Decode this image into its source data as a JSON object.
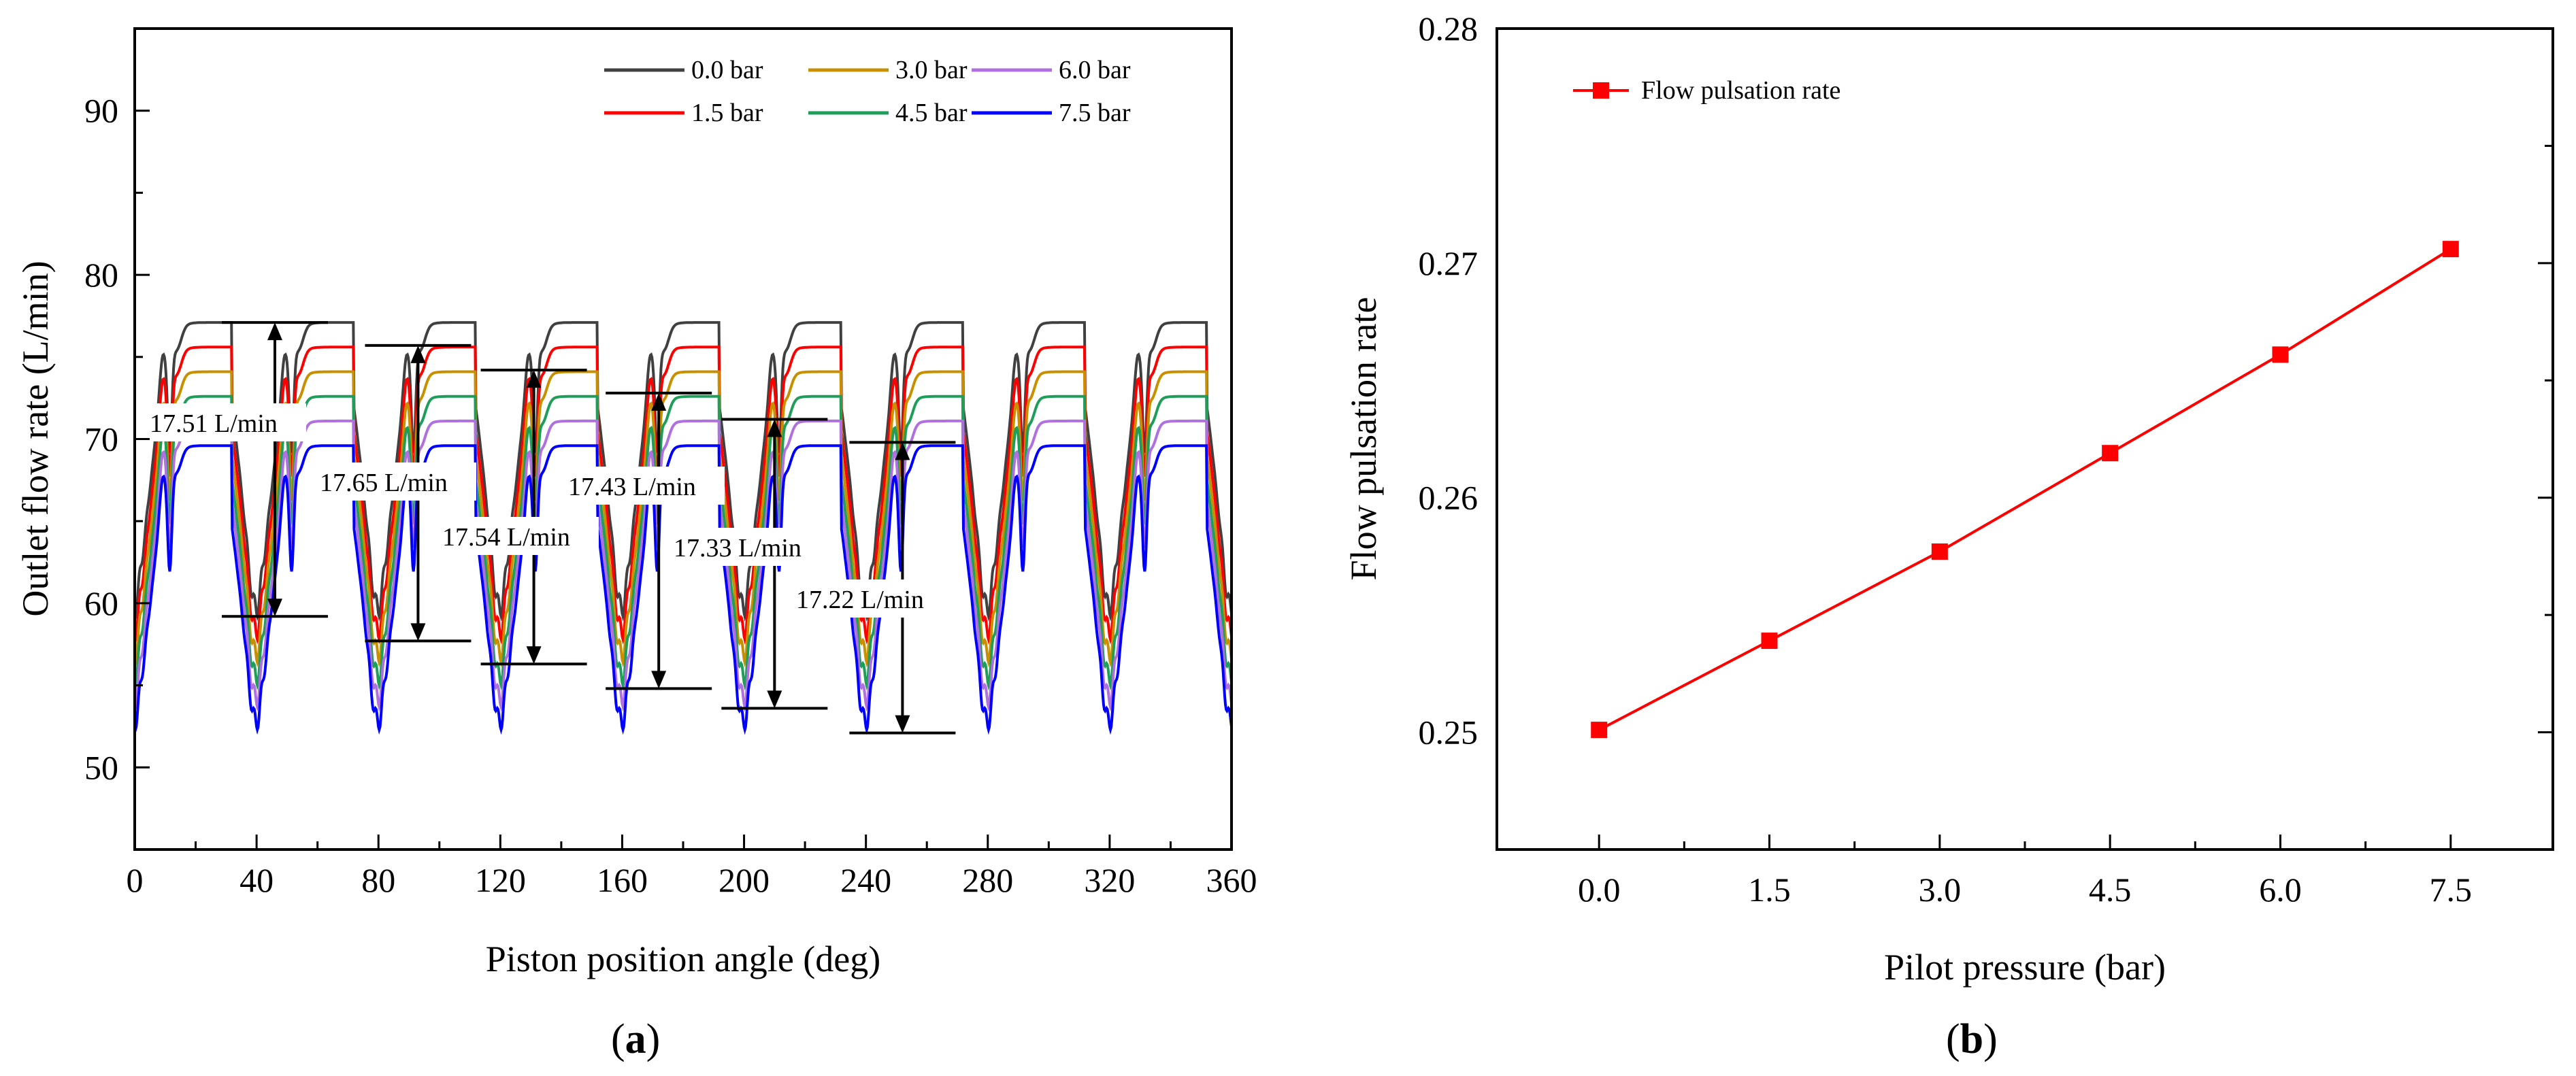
{
  "chart_data": [
    {
      "type": "line",
      "panel": "a",
      "panel_label": "a",
      "xlabel": "Piston position angle (deg)",
      "ylabel": "Outlet flow rate (L/min)",
      "xlim": [
        0,
        360
      ],
      "ylim": [
        45,
        95
      ],
      "xticks": [
        0,
        40,
        80,
        120,
        160,
        200,
        240,
        280,
        320,
        360
      ],
      "yticks": [
        50,
        60,
        70,
        80,
        90
      ],
      "legend_position": "top-right",
      "series": [
        {
          "name": "0.0 bar",
          "color": "#404040",
          "max": 77.1,
          "min": 59.2
        },
        {
          "name": "1.5 bar",
          "color": "#ff0000",
          "max": 75.6,
          "min": 57.8
        },
        {
          "name": "3.0 bar",
          "color": "#c89000",
          "max": 74.1,
          "min": 56.4
        },
        {
          "name": "4.5 bar",
          "color": "#1f9e5a",
          "max": 72.6,
          "min": 55.0
        },
        {
          "name": "6.0 bar",
          "color": "#b070e0",
          "max": 71.1,
          "min": 53.7
        },
        {
          "name": "7.5 bar",
          "color": "#0000ff",
          "max": 69.6,
          "min": 52.3
        }
      ],
      "annotations": [
        {
          "text": "17.51 L/min",
          "x": 46,
          "y_top": 77.1,
          "y_bottom": 59.2
        },
        {
          "text": "17.65 L/min",
          "x": 93,
          "y_top": 75.7,
          "y_bottom": 57.7
        },
        {
          "text": "17.54 L/min",
          "x": 131,
          "y_top": 74.2,
          "y_bottom": 56.3
        },
        {
          "text": "17.43 L/min",
          "x": 172,
          "y_top": 72.8,
          "y_bottom": 54.8
        },
        {
          "text": "17.33 L/min",
          "x": 210,
          "y_top": 71.2,
          "y_bottom": 53.6
        },
        {
          "text": "17.22 L/min",
          "x": 252,
          "y_top": 69.8,
          "y_bottom": 52.1
        }
      ]
    },
    {
      "type": "line",
      "panel": "b",
      "panel_label": "b",
      "xlabel": "Pilot pressure (bar)",
      "ylabel": "Flow pulsation rate",
      "xlim": [
        -0.9,
        8.4
      ],
      "ylim": [
        0.245,
        0.28
      ],
      "xticks": [
        0.0,
        1.5,
        3.0,
        4.5,
        6.0,
        7.5
      ],
      "xtick_labels": [
        "0.0",
        "1.5",
        "3.0",
        "4.5",
        "6.0",
        "7.5"
      ],
      "yticks": [
        0.25,
        0.26,
        0.27,
        0.28
      ],
      "ytick_labels": [
        "0.25",
        "0.26",
        "0.27",
        "0.28"
      ],
      "legend_position": "top-left",
      "series": [
        {
          "name": "Flow pulsation rate",
          "color": "#ff0000",
          "x": [
            0.0,
            1.5,
            3.0,
            4.5,
            6.0,
            7.5
          ],
          "values": [
            0.2501,
            0.2539,
            0.2577,
            0.2619,
            0.2661,
            0.2706
          ]
        }
      ]
    }
  ]
}
